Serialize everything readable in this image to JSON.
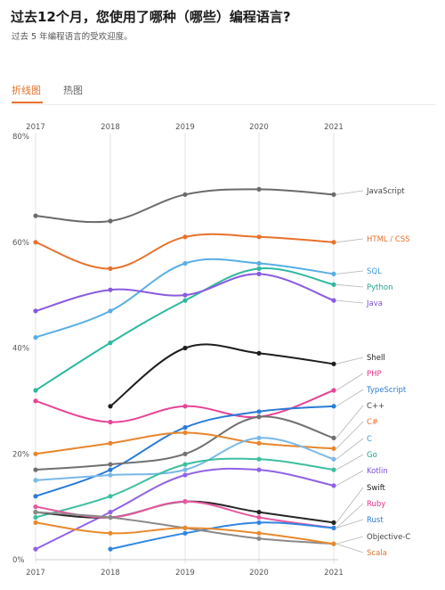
{
  "header": {
    "title": "过去12个月，您使用了哪种（哪些）编程语言?",
    "subtitle": "过去 5 年编程语言的受欢迎度。"
  },
  "tabs": [
    {
      "label": "折线图",
      "active": true
    },
    {
      "label": "热图",
      "active": false
    }
  ],
  "colors": {
    "accent": "#e8712b"
  },
  "chart_data": {
    "type": "line",
    "x": [
      "2017",
      "2018",
      "2019",
      "2020",
      "2021"
    ],
    "ylim": [
      0,
      80
    ],
    "yticks": [
      0,
      20,
      40,
      60,
      80
    ],
    "ytick_labels": [
      "0%",
      "20%",
      "40%",
      "60%",
      "80%"
    ],
    "grid": "vertical",
    "legend": "right-end labels",
    "series": [
      {
        "name": "JavaScript",
        "color": "#6b6b6b",
        "label_color": "#444444",
        "values": [
          65,
          64,
          69,
          70,
          69
        ]
      },
      {
        "name": "HTML / CSS",
        "color": "#e8712b",
        "label_color": "#e8712b",
        "values": [
          60,
          55,
          61,
          61,
          60
        ]
      },
      {
        "name": "SQL",
        "color": "#58aee6",
        "label_color": "#3b9ad9",
        "values": [
          42,
          47,
          56,
          56,
          54
        ]
      },
      {
        "name": "Python",
        "color": "#2eb89f",
        "label_color": "#22a38c",
        "values": [
          32,
          41,
          49,
          55,
          52
        ]
      },
      {
        "name": "Java",
        "color": "#8a5ae0",
        "label_color": "#7a4fd6",
        "values": [
          47,
          51,
          50,
          54,
          49
        ]
      },
      {
        "name": "Shell",
        "color": "#1e1e1e",
        "label_color": "#222222",
        "values": [
          null,
          29,
          40,
          39,
          37
        ]
      },
      {
        "name": "PHP",
        "color": "#e64597",
        "label_color": "#e0358a",
        "values": [
          30,
          26,
          29,
          27,
          32
        ]
      },
      {
        "name": "TypeScript",
        "color": "#2b7bd6",
        "label_color": "#2b7bd6",
        "values": [
          12,
          17,
          25,
          28,
          29
        ]
      },
      {
        "name": "C++",
        "color": "#707070",
        "label_color": "#444444",
        "values": [
          17,
          18,
          20,
          27,
          23
        ]
      },
      {
        "name": "C#",
        "color": "#e8862e",
        "label_color": "#e8712b",
        "values": [
          20,
          22,
          24,
          22,
          21
        ]
      },
      {
        "name": "C",
        "color": "#7ab8e8",
        "label_color": "#3b9ad9",
        "values": [
          15,
          16,
          17,
          23,
          19
        ]
      },
      {
        "name": "Go",
        "color": "#3dbf9f",
        "label_color": "#22a38c",
        "values": [
          8,
          12,
          18,
          19,
          17
        ]
      },
      {
        "name": "Kotlin",
        "color": "#9062e6",
        "label_color": "#7a4fd6",
        "values": [
          2,
          9,
          16,
          17,
          14
        ]
      },
      {
        "name": "Swift",
        "color": "#262626",
        "label_color": "#222222",
        "values": [
          9,
          8,
          11,
          9,
          7
        ]
      },
      {
        "name": "Ruby",
        "color": "#e65aa0",
        "label_color": "#e0358a",
        "values": [
          10,
          8,
          11,
          8,
          6
        ]
      },
      {
        "name": "Rust",
        "color": "#2f86e0",
        "label_color": "#2b7bd6",
        "values": [
          null,
          2,
          5,
          7,
          6
        ]
      },
      {
        "name": "Objective-C",
        "color": "#8a8a8a",
        "label_color": "#444444",
        "values": [
          9,
          8,
          6,
          4,
          3
        ]
      },
      {
        "name": "Scala",
        "color": "#e88a2e",
        "label_color": "#e8712b",
        "values": [
          7,
          5,
          6,
          5,
          3
        ]
      }
    ]
  }
}
